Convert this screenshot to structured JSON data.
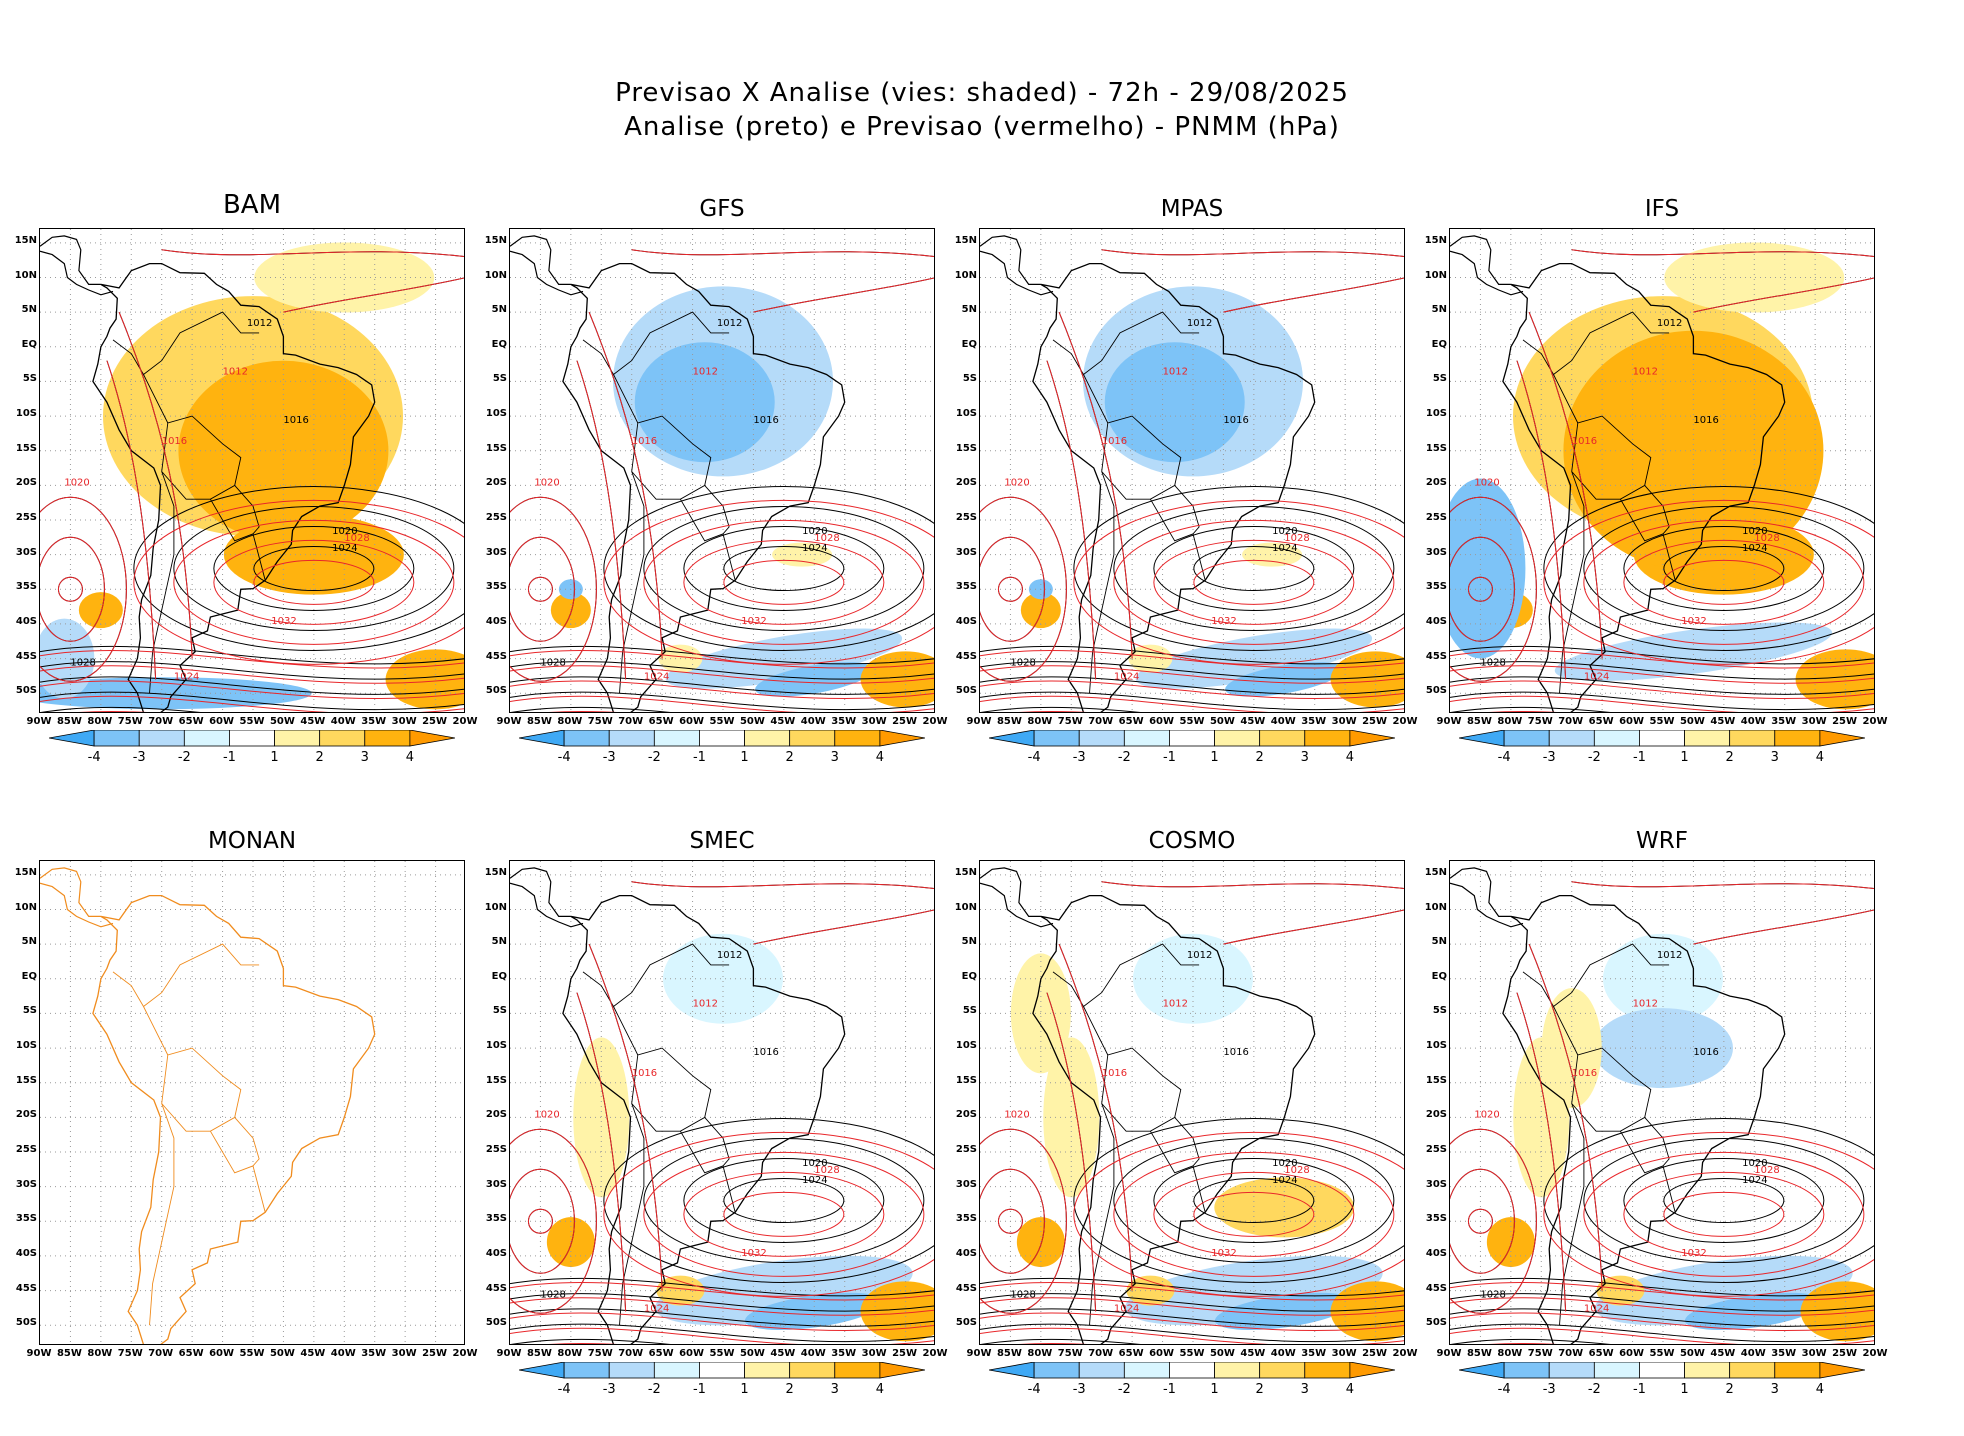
{
  "title": {
    "line1": "Previsao X Analise (vies: shaded) - 72h - 29/08/2025",
    "line2": "Analise (preto) e Previsao (vermelho) - PNMM (hPa)"
  },
  "panels": [
    {
      "name": "BAM",
      "bias": "warm",
      "colorbar": true
    },
    {
      "name": "GFS",
      "bias": "cool",
      "colorbar": true
    },
    {
      "name": "MPAS",
      "bias": "cool",
      "colorbar": true
    },
    {
      "name": "IFS",
      "bias": "warm",
      "colorbar": true
    },
    {
      "name": "MONAN",
      "bias": "none",
      "colorbar": false
    },
    {
      "name": "SMEC",
      "bias": "mixed",
      "colorbar": true
    },
    {
      "name": "COSMO",
      "bias": "mixed",
      "colorbar": true
    },
    {
      "name": "WRF",
      "bias": "mixed",
      "colorbar": true
    }
  ],
  "lat_labels": [
    "15N",
    "10N",
    "5N",
    "EQ",
    "5S",
    "10S",
    "15S",
    "20S",
    "25S",
    "30S",
    "35S",
    "40S",
    "45S",
    "50S"
  ],
  "lon_labels": [
    "90W",
    "85W",
    "80W",
    "75W",
    "70W",
    "65W",
    "60W",
    "55W",
    "50W",
    "45W",
    "40W",
    "35W",
    "30W",
    "25W",
    "20W"
  ],
  "colorbar": {
    "labels": [
      "-4",
      "-3",
      "-2",
      "-1",
      "1",
      "2",
      "3",
      "4"
    ],
    "colors": [
      "#3fa9f5",
      "#7dc3f7",
      "#b5dbf9",
      "#d9f6ff",
      "#ffffff",
      "#fff3a8",
      "#ffd85e",
      "#ffb30f",
      "#ff9a00"
    ]
  },
  "isobar_labels": {
    "analysis": [
      "1012",
      "1016",
      "1020",
      "1024",
      "1028"
    ],
    "forecast": [
      "1012",
      "1016",
      "1020",
      "1024",
      "1028",
      "1032"
    ]
  },
  "colors": {
    "analysis": "#000000",
    "forecast": "#e8262a",
    "coastline": "#000000",
    "monan_coast": "#f08c1e"
  }
}
